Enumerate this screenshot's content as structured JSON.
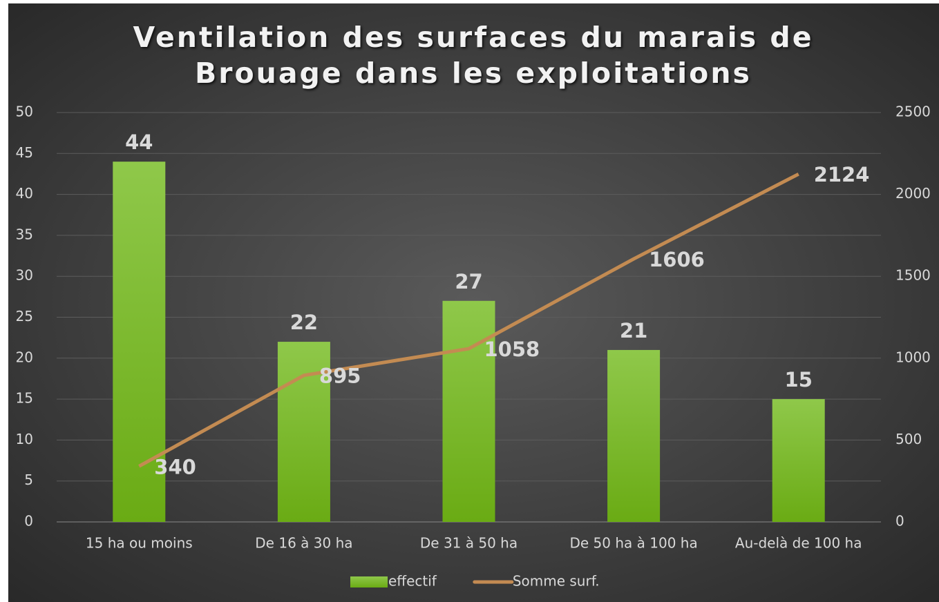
{
  "chart_data": {
    "type": "bar_line",
    "title": "Ventilation des surfaces du marais de Brouage dans les exploitations",
    "categories": [
      "15 ha ou moins",
      "De 16 à 30 ha",
      "De 31 à 50 ha",
      "De 50 ha à 100 ha",
      "Au-delà de 100 ha"
    ],
    "series": [
      {
        "name": "effectif",
        "type": "bar",
        "color": "#7cbb27",
        "values": [
          44,
          22,
          27,
          21,
          15
        ]
      },
      {
        "name": "Somme surf.",
        "type": "line",
        "color": "#c38b52",
        "axis": "y2",
        "values": [
          340,
          895,
          1058,
          1606,
          2124
        ]
      }
    ],
    "ylim": [
      0,
      50
    ],
    "yticks": [
      0,
      5,
      10,
      15,
      20,
      25,
      30,
      35,
      40,
      45,
      50
    ],
    "y2lim": [
      0,
      2500
    ],
    "y2ticks": [
      0,
      500,
      1000,
      1500,
      2000,
      2500
    ],
    "grid": true,
    "legend": "bottom"
  }
}
